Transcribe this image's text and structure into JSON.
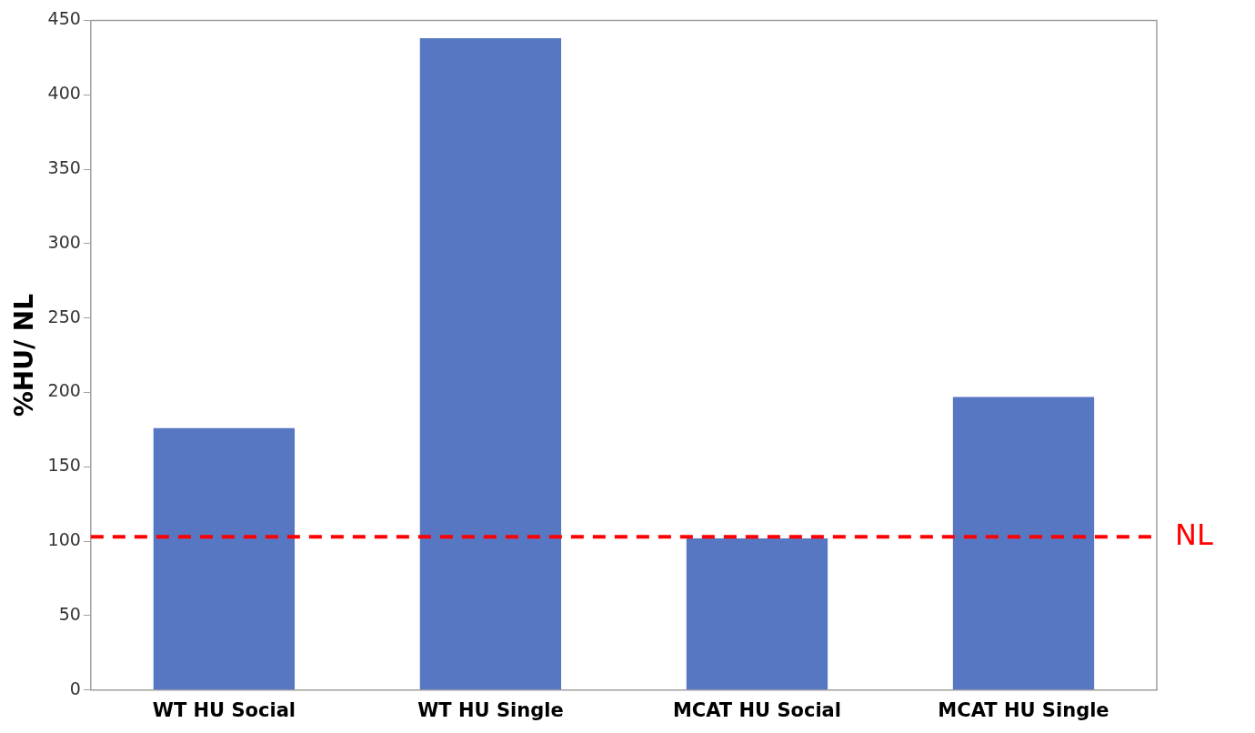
{
  "chart_data": {
    "type": "bar",
    "ylabel": "%HU/ NL",
    "categories": [
      "WT HU Social",
      "WT HU Single",
      "MCAT HU Social",
      "MCAT HU Single"
    ],
    "values": [
      176,
      438,
      102,
      197
    ],
    "color": "#5877c3",
    "ylim": [
      0,
      450
    ],
    "yticks": [
      0,
      50,
      100,
      150,
      200,
      250,
      300,
      350,
      400,
      450
    ],
    "grid": false,
    "ref_lines": [
      {
        "axis": "y",
        "value": 103,
        "label": "NL",
        "color": "#ff0000",
        "line_style": "dashed"
      }
    ]
  }
}
